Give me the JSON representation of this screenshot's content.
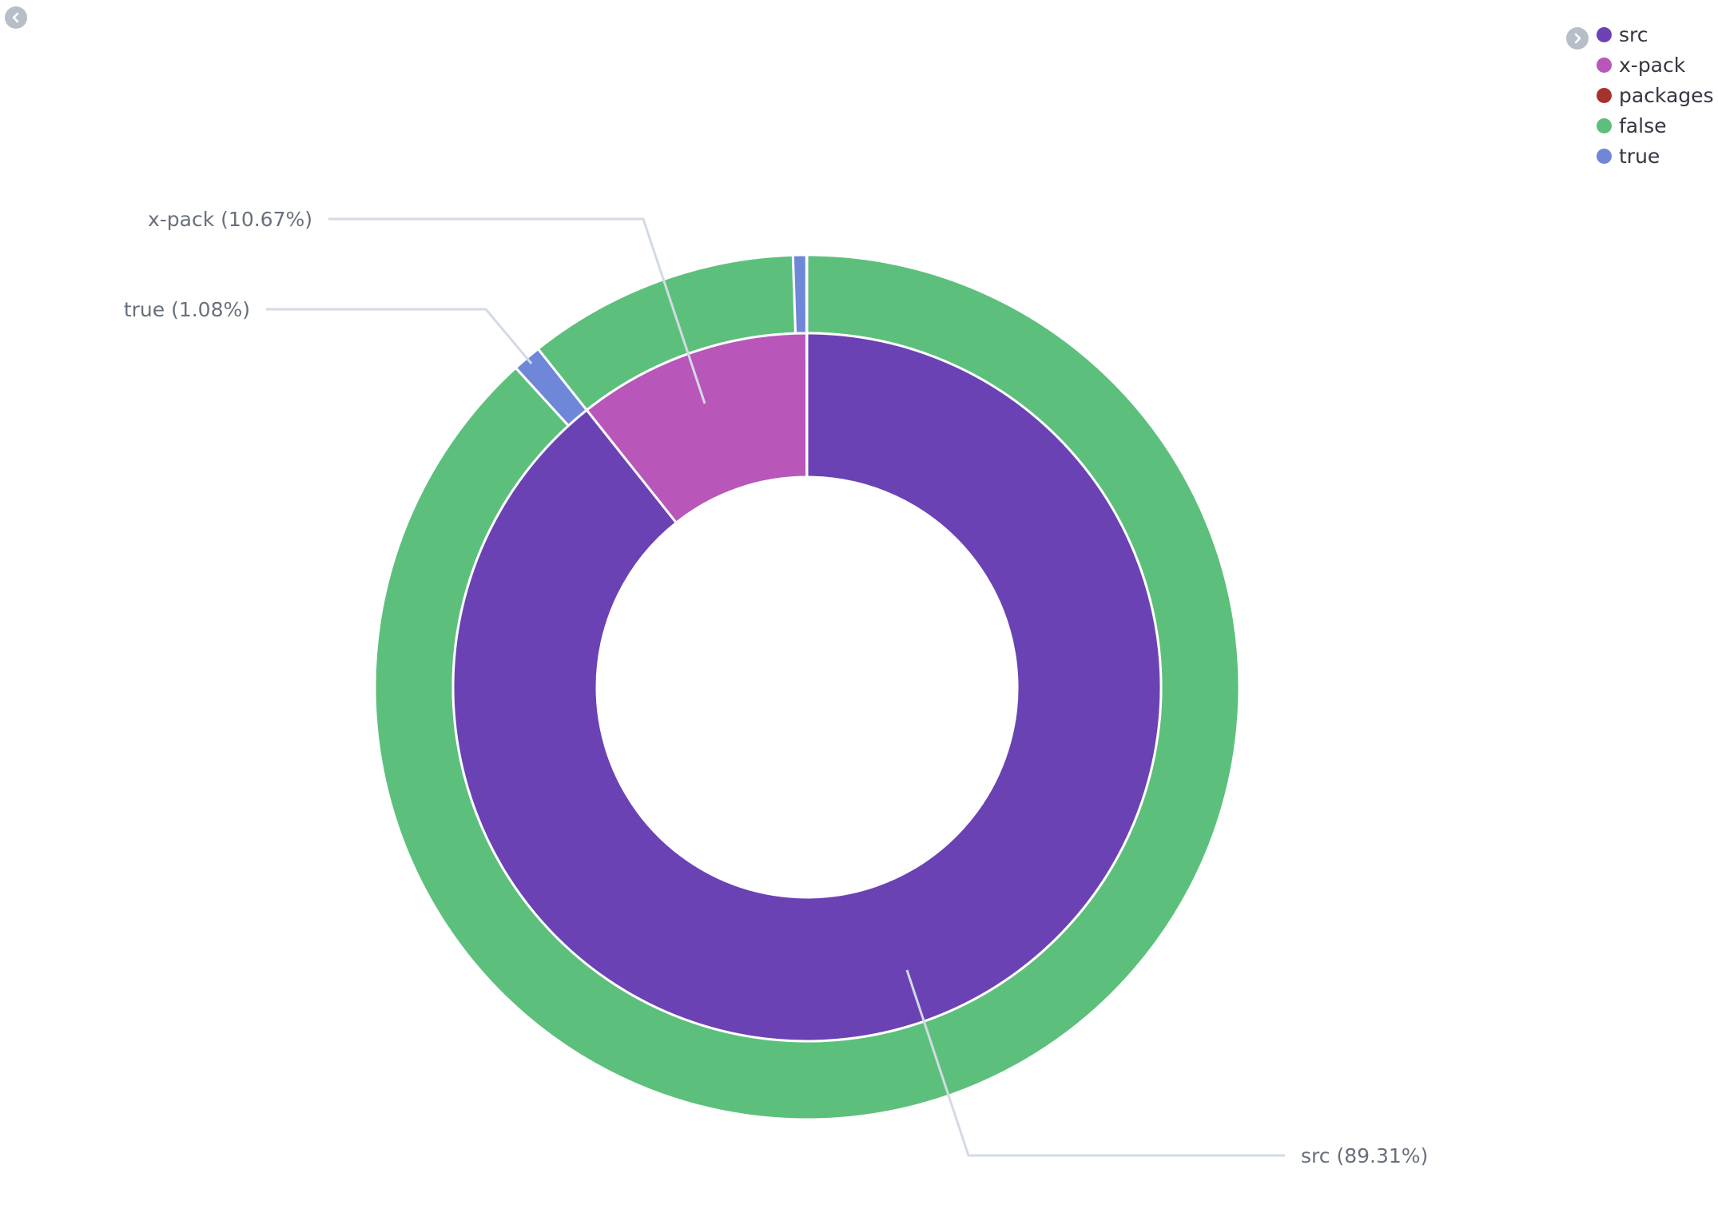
{
  "chart_data": {
    "type": "pie",
    "subtype": "nested-donut",
    "title": "",
    "rings": [
      {
        "level": "inner",
        "slices": [
          {
            "label": "src",
            "percent": 89.31,
            "color": "#6a42b4"
          },
          {
            "label": "x-pack",
            "percent": 10.67,
            "color": "#b857b9"
          },
          {
            "label": "packages",
            "percent": 0.02,
            "color": "#a6322e"
          }
        ]
      },
      {
        "level": "outer",
        "slices": [
          {
            "parent": "src",
            "label": "false",
            "percent": 88.23,
            "color": "#5cc07c"
          },
          {
            "parent": "src",
            "label": "true",
            "percent": 1.08,
            "color": "#6f87d8"
          },
          {
            "parent": "x-pack",
            "label": "false",
            "percent": 10.17,
            "color": "#5cc07c"
          },
          {
            "parent": "x-pack",
            "label": "true",
            "percent": 0.5,
            "color": "#6f87d8"
          },
          {
            "parent": "packages",
            "label": "false",
            "percent": 0.02,
            "color": "#5cc07c"
          }
        ]
      }
    ],
    "callouts": [
      {
        "text": "x-pack (10.67%)",
        "side": "left",
        "ring": "inner",
        "slice": "x-pack"
      },
      {
        "text": "true (1.08%)",
        "side": "left",
        "ring": "outer",
        "slice": "true",
        "parent": "src"
      },
      {
        "text": "src (89.31%)",
        "side": "right",
        "ring": "inner",
        "slice": "src"
      }
    ],
    "legend": {
      "position": "top-right",
      "items": [
        {
          "label": "src",
          "color": "#6a42b4"
        },
        {
          "label": "x-pack",
          "color": "#b857b9"
        },
        {
          "label": "packages",
          "color": "#a6322e"
        },
        {
          "label": "false",
          "color": "#5cc07c"
        },
        {
          "label": "true",
          "color": "#6f87d8"
        }
      ]
    }
  },
  "controls": {
    "collapse_icon": "chevron-left-icon",
    "legend_toggle_icon": "chevron-right-icon"
  }
}
